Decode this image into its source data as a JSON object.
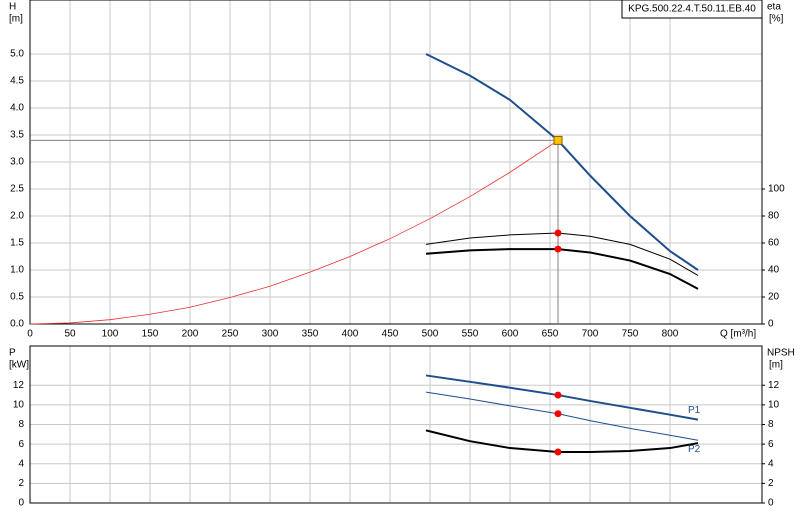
{
  "chart_data": [
    {
      "type": "line",
      "title": "KPG.500.22.4.T.50.11.EB.40",
      "ylabel": "H",
      "ylabel_unit": "[m]",
      "y2label": "eta",
      "y2label_unit": "[%]",
      "xlabel": "Q [m³/h]",
      "xlim": [
        0,
        915
      ],
      "xticks": [
        0,
        50,
        100,
        150,
        200,
        250,
        300,
        350,
        400,
        450,
        500,
        550,
        600,
        650,
        700,
        750,
        800
      ],
      "ylim": [
        0,
        6
      ],
      "yticks": [
        {
          "value": 0,
          "label": "0.0"
        },
        {
          "value": 0.5,
          "label": "0.5"
        },
        {
          "value": 1,
          "label": "1.0"
        },
        {
          "value": 1.5,
          "label": "1.5"
        },
        {
          "value": 2,
          "label": "2.0"
        },
        {
          "value": 2.5,
          "label": "2.5"
        },
        {
          "value": 3,
          "label": "3.0"
        },
        {
          "value": 3.5,
          "label": "3.5"
        },
        {
          "value": 4,
          "label": "4.0"
        },
        {
          "value": 4.5,
          "label": "4.5"
        },
        {
          "value": 5,
          "label": "5.0"
        }
      ],
      "y2lim": [
        0,
        240
      ],
      "y2ticks": [
        0,
        20,
        40,
        60,
        80,
        100
      ],
      "grid": true,
      "xtick_labels": true,
      "marker_color": "#ff0000",
      "operating_point": {
        "x": 660,
        "y": 3.4,
        "color": "#ffc000"
      },
      "series": [
        {
          "color": "#1f4e8c",
          "width": 2,
          "x": [
            495,
            550,
            600,
            660,
            700,
            750,
            800,
            835
          ],
          "values": [
            5.0,
            4.6,
            4.15,
            3.4,
            2.75,
            2.0,
            1.35,
            1.0
          ]
        },
        {
          "color": "#e83030",
          "width": 0.8,
          "x": [
            0,
            50,
            100,
            150,
            200,
            250,
            300,
            350,
            400,
            450,
            500,
            550,
            600,
            660
          ],
          "values": [
            0,
            0.02,
            0.08,
            0.18,
            0.31,
            0.49,
            0.7,
            0.96,
            1.25,
            1.58,
            1.95,
            2.36,
            2.81,
            3.4
          ]
        },
        {
          "color": "#000000",
          "width": 1,
          "axis": "y2",
          "marker": true,
          "x": [
            495,
            550,
            600,
            660,
            700,
            750,
            800,
            835
          ],
          "values": [
            59,
            63.7,
            66,
            67.4,
            65,
            59,
            48,
            36
          ]
        },
        {
          "color": "#000000",
          "width": 2,
          "axis": "y2",
          "marker": true,
          "x": [
            495,
            550,
            600,
            660,
            700,
            750,
            800,
            835
          ],
          "values": [
            52,
            54.5,
            55.5,
            55.5,
            53,
            47,
            37,
            26
          ]
        }
      ]
    },
    {
      "type": "line",
      "ylabel": "P",
      "ylabel_unit": "[kW]",
      "y2label": "NPSH",
      "y2label_unit": "[m]",
      "xlim": [
        0,
        915
      ],
      "xticks": [
        0,
        50,
        100,
        150,
        200,
        250,
        300,
        350,
        400,
        450,
        500,
        550,
        600,
        650,
        700,
        750,
        800
      ],
      "ylim": [
        0,
        16
      ],
      "yticks": [
        0,
        2,
        4,
        6,
        8,
        10,
        12
      ],
      "y2lim": [
        0,
        16
      ],
      "y2ticks": [
        0,
        2,
        4,
        6,
        8,
        10,
        12
      ],
      "grid": true,
      "xtick_labels": false,
      "marker_color": "#ff0000",
      "marker_x": 660,
      "series": [
        {
          "name": "P1",
          "color": "#1f4e8c",
          "width": 2,
          "marker": true,
          "x": [
            495,
            550,
            600,
            660,
            700,
            750,
            800,
            835
          ],
          "values": [
            13.0,
            12.35,
            11.75,
            11.0,
            10.4,
            9.7,
            9.0,
            8.5
          ]
        },
        {
          "name": "P2",
          "color": "#1f4e8c",
          "width": 1,
          "marker": true,
          "x": [
            495,
            550,
            600,
            660,
            700,
            750,
            800,
            835
          ],
          "values": [
            11.3,
            10.6,
            9.9,
            9.1,
            8.4,
            7.6,
            6.9,
            6.4
          ]
        },
        {
          "color": "#000000",
          "width": 2,
          "axis": "y2",
          "marker": true,
          "x": [
            495,
            550,
            600,
            660,
            700,
            750,
            800,
            835
          ],
          "values": [
            7.4,
            6.3,
            5.6,
            5.2,
            5.2,
            5.3,
            5.6,
            6.1
          ]
        }
      ]
    }
  ]
}
